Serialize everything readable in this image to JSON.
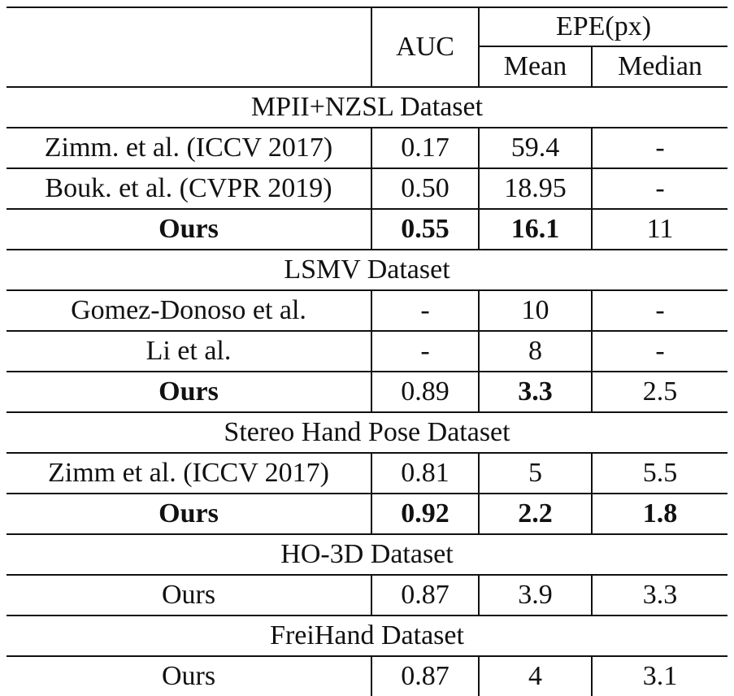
{
  "header": {
    "auc": "AUC",
    "epe": "EPE(px)",
    "mean": "Mean",
    "median": "Median"
  },
  "sections": [
    {
      "title": "MPII+NZSL Dataset",
      "rows": [
        {
          "method": "Zimm. et al. (ICCV 2017)",
          "auc": "0.17",
          "mean": "59.4",
          "median": "-"
        },
        {
          "method": "Bouk. et al. (CVPR 2019)",
          "auc": "0.50",
          "mean": "18.95",
          "median": "-"
        },
        {
          "method": "Ours",
          "auc": "0.55",
          "mean": "16.1",
          "median": "11"
        }
      ]
    },
    {
      "title": "LSMV Dataset",
      "rows": [
        {
          "method": "Gomez-Donoso et al.",
          "auc": "-",
          "mean": "10",
          "median": "-"
        },
        {
          "method": "Li et al.",
          "auc": "-",
          "mean": "8",
          "median": "-"
        },
        {
          "method": "Ours",
          "auc": "0.89",
          "mean": "3.3",
          "median": "2.5"
        }
      ]
    },
    {
      "title": "Stereo Hand Pose Dataset",
      "rows": [
        {
          "method": "Zimm et al. (ICCV 2017)",
          "auc": "0.81",
          "mean": "5",
          "median": "5.5"
        },
        {
          "method": "Ours",
          "auc": "0.92",
          "mean": "2.2",
          "median": "1.8"
        }
      ]
    },
    {
      "title": "HO-3D Dataset",
      "rows": [
        {
          "method": "Ours",
          "auc": "0.87",
          "mean": "3.9",
          "median": "3.3"
        }
      ]
    },
    {
      "title": "FreiHand Dataset",
      "rows": [
        {
          "method": "Ours",
          "auc": "0.87",
          "mean": "4",
          "median": "3.1"
        }
      ]
    }
  ]
}
